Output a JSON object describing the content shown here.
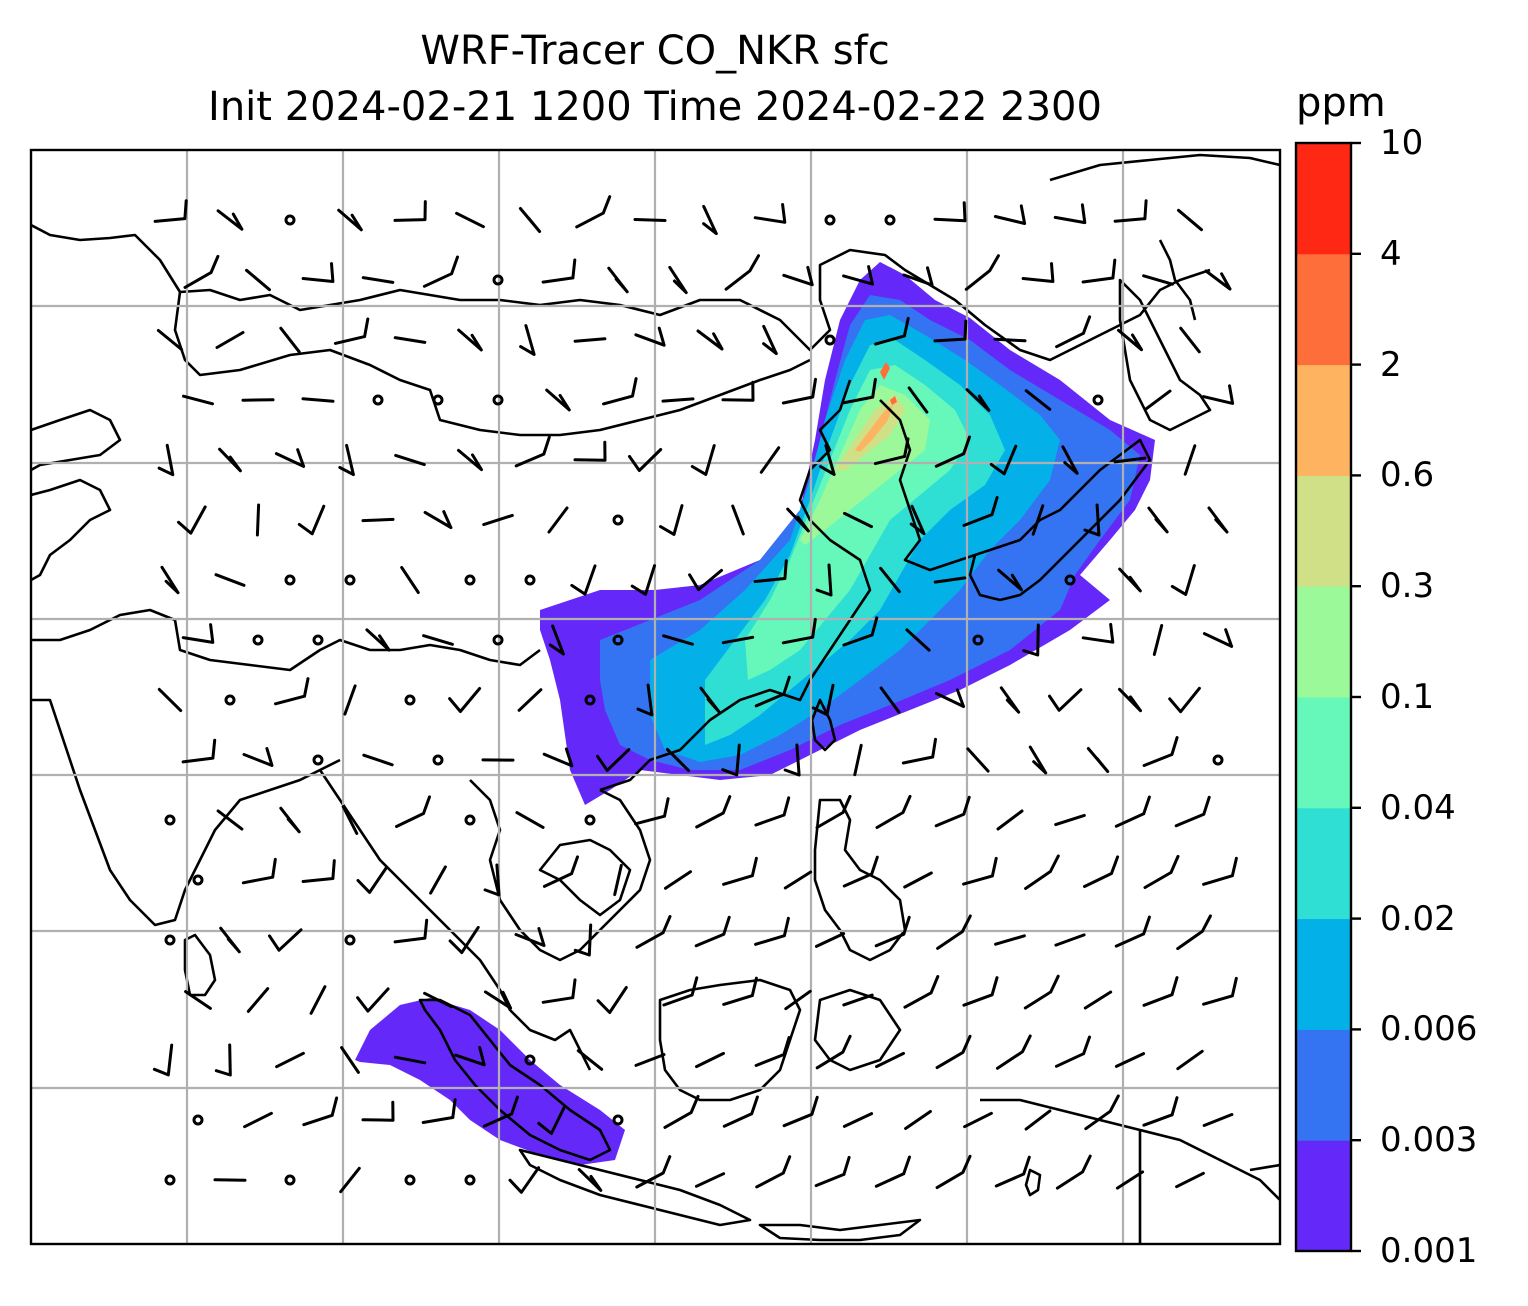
{
  "title": {
    "line1": "WRF-Tracer CO_NKR sfc",
    "line2": "Init 2024-02-21 1200 Time 2024-02-22 2300"
  },
  "colorbar": {
    "unit": "ppm",
    "levels": [
      "0.001",
      "0.003",
      "0.006",
      "0.02",
      "0.04",
      "0.1",
      "0.3",
      "0.6",
      "2",
      "4",
      "10"
    ],
    "colors": [
      "#6428f8",
      "#3473f2",
      "#04b0e8",
      "#2fdfd4",
      "#66f8ba",
      "#9bf99a",
      "#d0e087",
      "#fdb35f",
      "#fe6e3a",
      "#fe2815"
    ]
  },
  "map": {
    "projection_grid": "lat-lon graticule",
    "coastline_color": "#000000",
    "grid_color": "#b0b0b0",
    "barb_color": "#000000"
  }
}
